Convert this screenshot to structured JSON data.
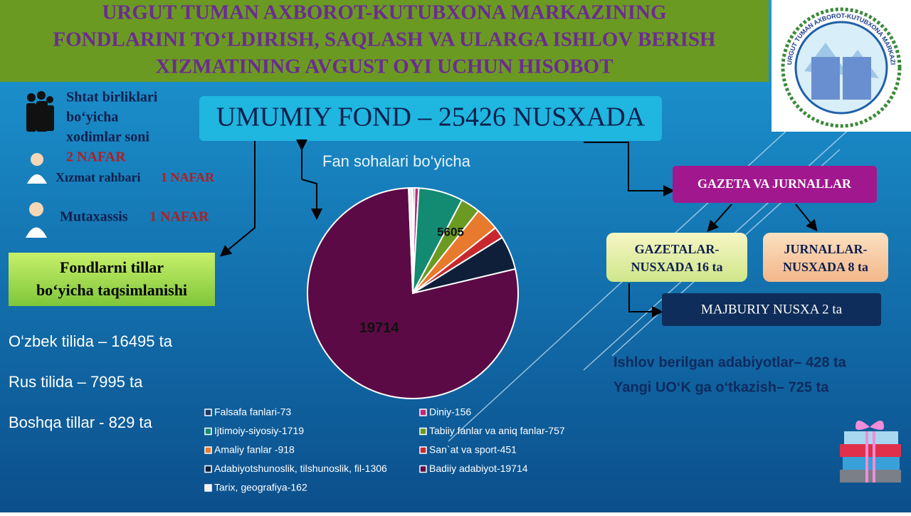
{
  "header": {
    "title_lines": [
      "URGUT TUMAN AXBOROT-KUTUBXONA MARKAZINING",
      "FONDLARINI TO‘LDIRISH, SAQLASH VA ULARGA  ISHLOV BERISH",
      "XIZMATINING AVGUST OYI UCHUN HISOBOT"
    ],
    "logo_text": "URGUT TUMAN AXBOROT-KUTUBXONA MARKAZI"
  },
  "staff": {
    "label_lines": [
      "Shtat birliklari",
      "bo‘yicha",
      "xodimlar soni"
    ],
    "count": "2 NAFAR",
    "roles": [
      {
        "name": "Xızmat rahbari",
        "count": "1 NAFAR"
      },
      {
        "name": "Mutaxassis",
        "count": "1 NAFAR"
      }
    ]
  },
  "total": "UMUMIY FOND – 25426 NUSXADA",
  "languages": {
    "title_lines": [
      "Fondlarni tillar",
      "bo‘yicha taqsimlanishi"
    ],
    "items": [
      "O‘zbek tilida – 16495 ta",
      "Rus tilida – 7995 ta",
      "Boshqa tillar  - 829 ta"
    ]
  },
  "periodicals": {
    "title": "GAZETA VA JURNALLAR",
    "newspapers": [
      "GAZETALAR-",
      "NUSXADA 16 ta"
    ],
    "journals": [
      "JURNALLAR-",
      "NUSXADA 8 ta"
    ],
    "mandatory": "MAJBURIY NUSXA 2 ta"
  },
  "stats": [
    "Ishlov berilgan adabiyotlar– 428 ta",
    "Yangi UO‘K ga o‘tkazish– 725 ta"
  ],
  "chart_data": {
    "type": "pie",
    "title": "Fan sohalari bo‘yicha",
    "categories": [
      "Falsafa fanlari-73",
      "Diniy-156",
      "Ijtimoiy-siyosiy-1719",
      "Tabiiy fanlar va aniq fanlar-757",
      "Amaliy fanlar -918",
      "San`at va sport-451",
      "Adabiyotshunoslik, tilshunoslik, fil-1306",
      "Badiiy adabiyot-19714",
      "Tarix, geografiya-162"
    ],
    "values": [
      73,
      156,
      1719,
      757,
      918,
      451,
      1306,
      19714,
      162
    ],
    "colors": [
      "#1f3864",
      "#c0267a",
      "#138a72",
      "#6b9a22",
      "#e87a2e",
      "#c8282d",
      "#0f1f3a",
      "#5c0a45",
      "#f0f0f0"
    ],
    "annotations": [
      "5605"
    ]
  }
}
